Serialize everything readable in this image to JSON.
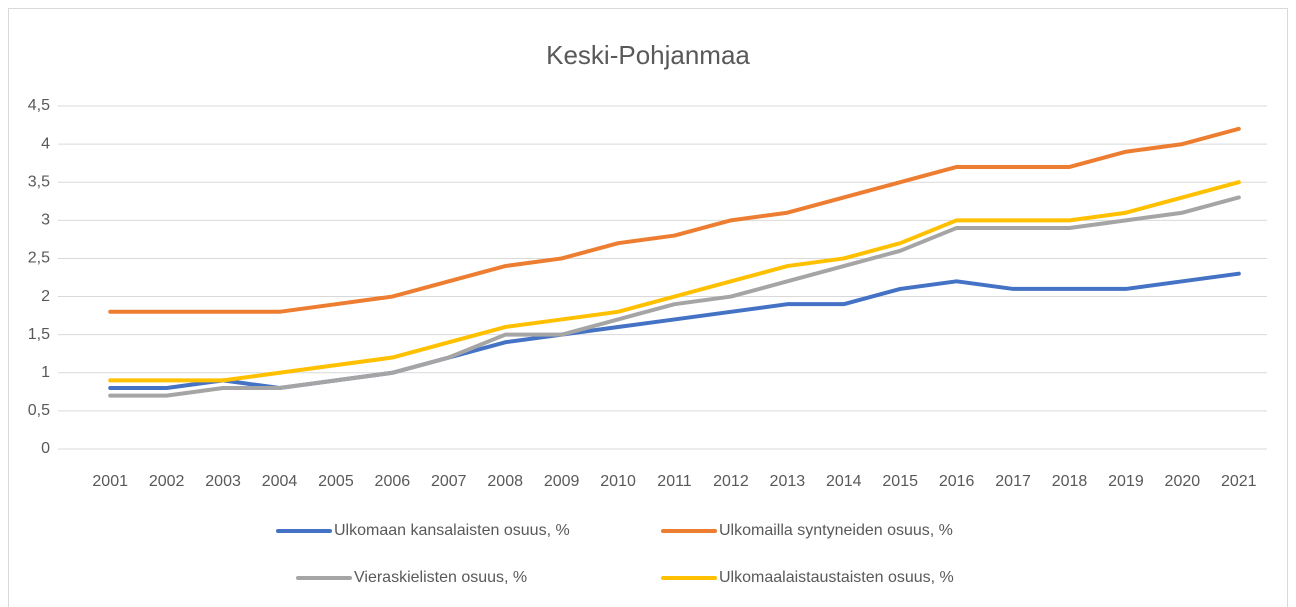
{
  "chart_data": {
    "type": "line",
    "title": "Keski-Pohjanmaa",
    "categories": [
      "2001",
      "2002",
      "2003",
      "2004",
      "2005",
      "2006",
      "2007",
      "2008",
      "2009",
      "2010",
      "2011",
      "2012",
      "2013",
      "2014",
      "2015",
      "2016",
      "2017",
      "2018",
      "2019",
      "2020",
      "2021"
    ],
    "series": [
      {
        "name": "Ulkomaan kansalaisten osuus, %",
        "color": "#4472c4",
        "values": [
          0.8,
          0.8,
          0.9,
          0.8,
          0.9,
          1.0,
          1.2,
          1.4,
          1.5,
          1.6,
          1.7,
          1.8,
          1.9,
          1.9,
          2.1,
          2.2,
          2.1,
          2.1,
          2.1,
          2.2,
          2.3
        ]
      },
      {
        "name": "Ulkomailla syntyneiden osuus, %",
        "color": "#ed7d31",
        "values": [
          1.8,
          1.8,
          1.8,
          1.8,
          1.9,
          2.0,
          2.2,
          2.4,
          2.5,
          2.7,
          2.8,
          3.0,
          3.1,
          3.3,
          3.5,
          3.7,
          3.7,
          3.7,
          3.9,
          4.0,
          4.2
        ]
      },
      {
        "name": "Vieraskielisten osuus, %",
        "color": "#a5a5a5",
        "values": [
          0.7,
          0.7,
          0.8,
          0.8,
          0.9,
          1.0,
          1.2,
          1.5,
          1.5,
          1.7,
          1.9,
          2.0,
          2.2,
          2.4,
          2.6,
          2.9,
          2.9,
          2.9,
          3.0,
          3.1,
          3.3
        ]
      },
      {
        "name": "Ulkomaalaistaustaisten osuus, %",
        "color": "#ffc000",
        "values": [
          0.9,
          0.9,
          0.9,
          1.0,
          1.1,
          1.2,
          1.4,
          1.6,
          1.7,
          1.8,
          2.0,
          2.2,
          2.4,
          2.5,
          2.7,
          3.0,
          3.0,
          3.0,
          3.1,
          3.3,
          3.5
        ]
      }
    ],
    "ylim": [
      0,
      4.5
    ],
    "yticks": [
      0,
      {
        "value": 0.5,
        "label": "0,5"
      },
      1,
      {
        "value": 1.5,
        "label": "1,5"
      },
      2,
      {
        "value": 2.5,
        "label": "2,5"
      },
      3,
      {
        "value": 3.5,
        "label": "3,5"
      },
      4,
      {
        "value": 4.5,
        "label": "4,5"
      }
    ],
    "grid": true,
    "legend": "bottom"
  }
}
